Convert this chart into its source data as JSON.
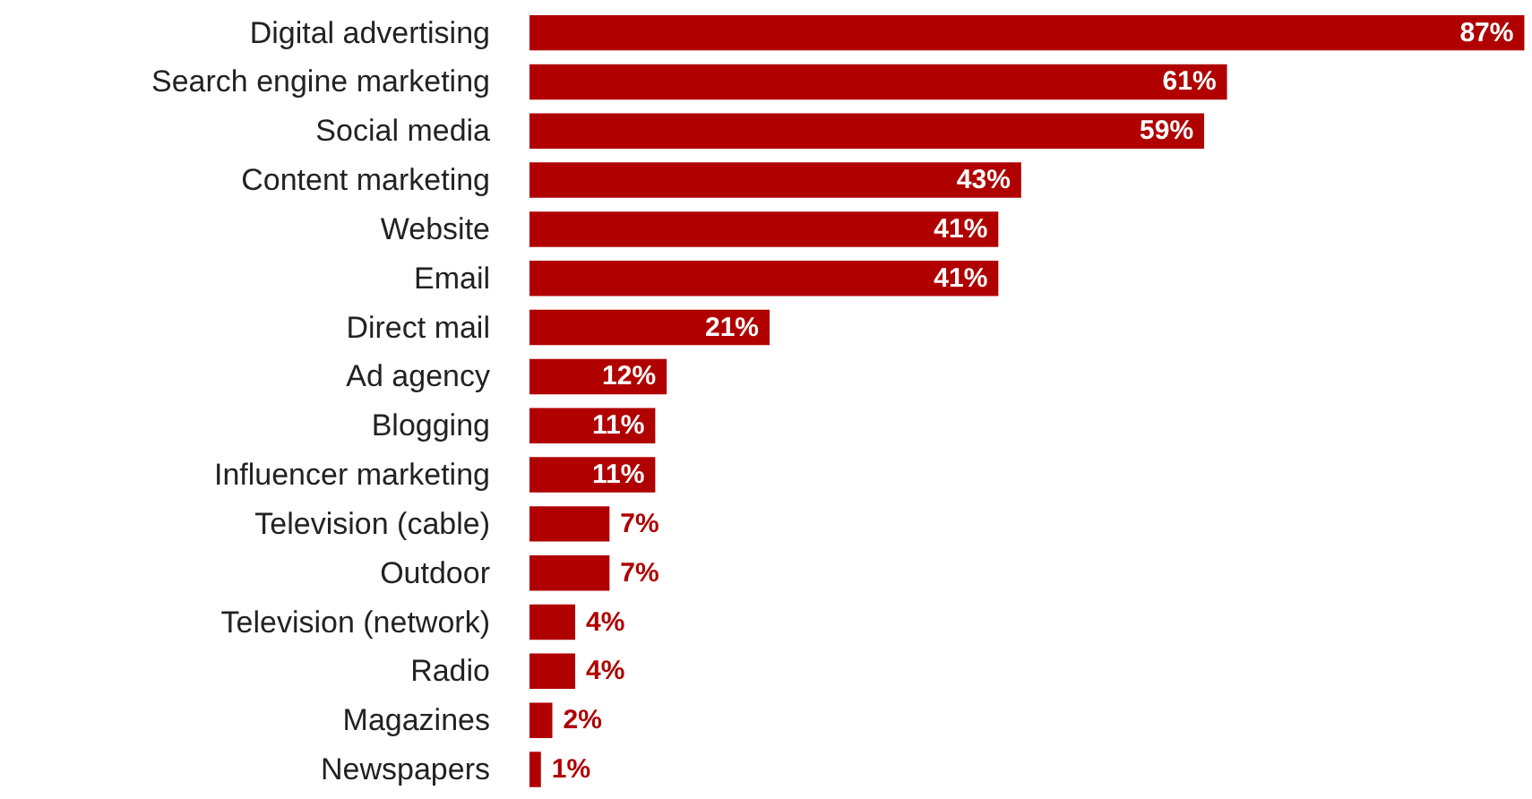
{
  "chart_data": {
    "type": "bar",
    "orientation": "horizontal",
    "categories": [
      "Digital advertising",
      "Search engine marketing",
      "Social media",
      "Content marketing",
      "Website",
      "Email",
      "Direct mail",
      "Ad agency",
      "Blogging",
      "Influencer marketing",
      "Television (cable)",
      "Outdoor",
      "Television (network)",
      "Radio",
      "Magazines",
      "Newspapers"
    ],
    "values": [
      87,
      61,
      59,
      43,
      41,
      41,
      21,
      12,
      11,
      11,
      7,
      7,
      4,
      4,
      2,
      1
    ],
    "value_labels": [
      "87%",
      "61%",
      "59%",
      "43%",
      "41%",
      "41%",
      "21%",
      "12%",
      "11%",
      "11%",
      "7%",
      "7%",
      "4%",
      "4%",
      "2%",
      "1%"
    ],
    "color": "#b00000",
    "grid": false
  }
}
